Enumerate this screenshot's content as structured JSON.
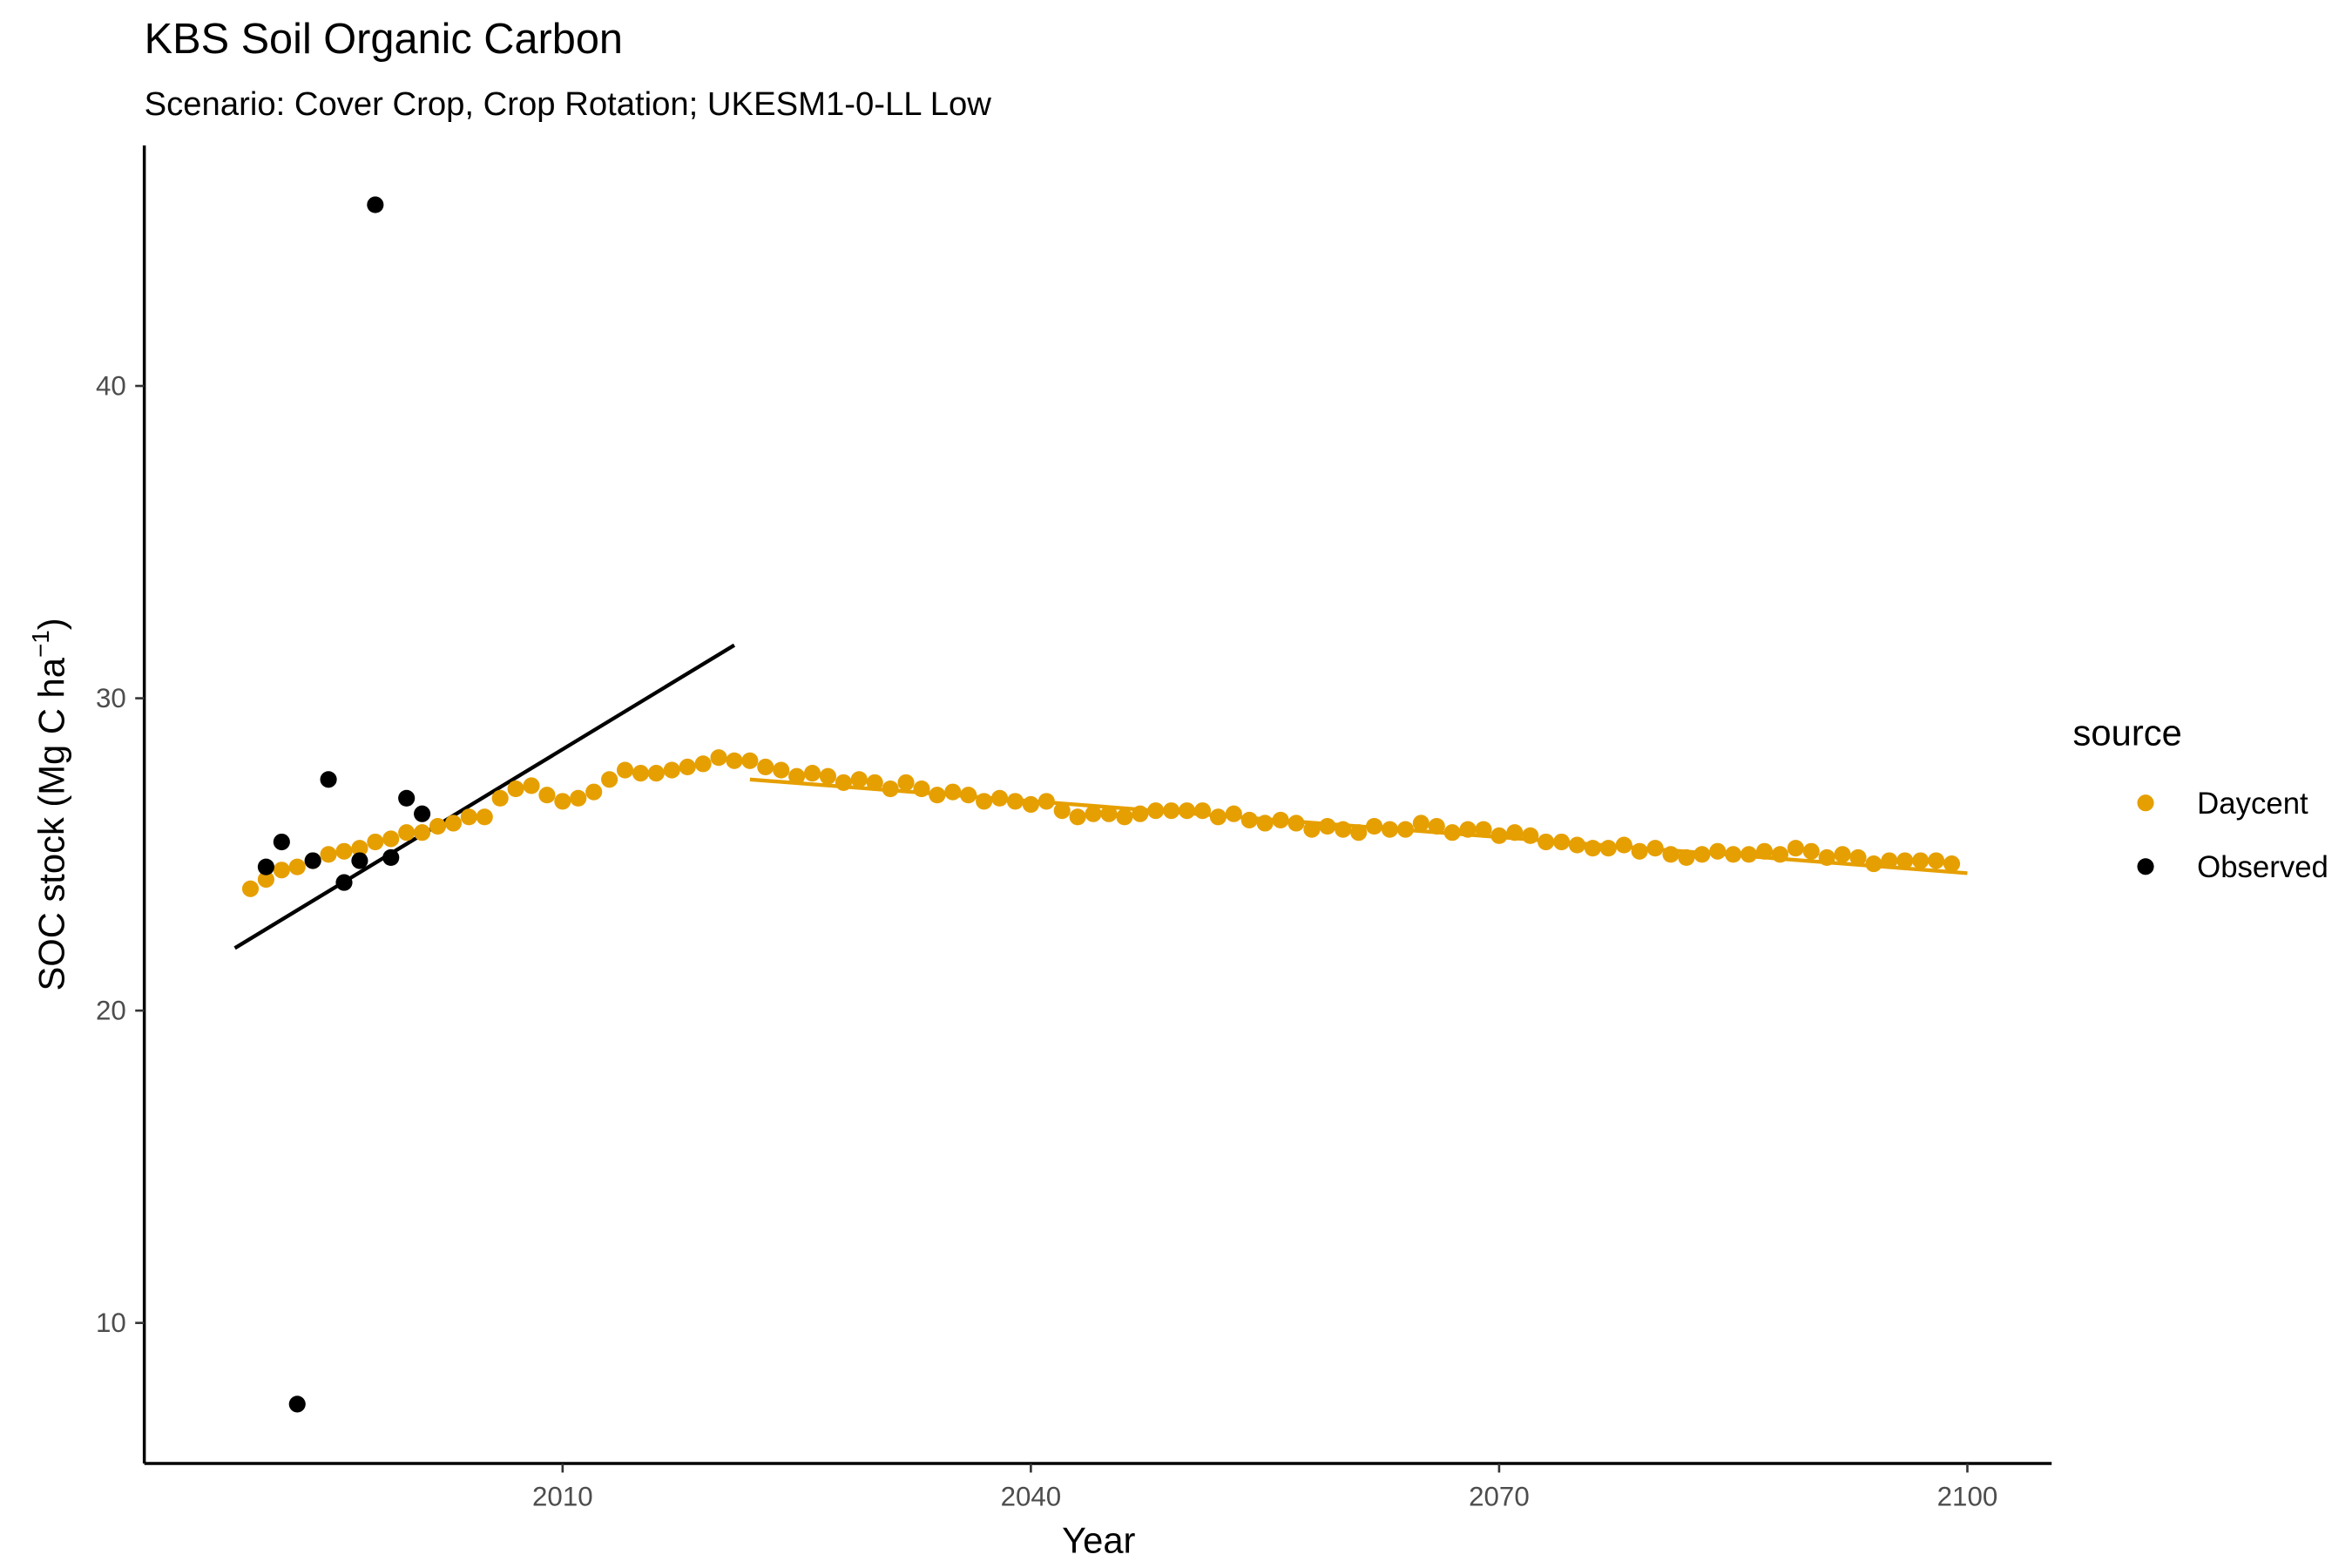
{
  "chart_data": {
    "type": "scatter",
    "title": "KBS Soil Organic Carbon",
    "subtitle": "Scenario: Cover Crop, Crop Rotation; UKESM1-0-LL Low",
    "x_label": "Year",
    "y_label": {
      "text": "SOC stock (Mg C ha",
      "sup": "−1",
      "end": ")"
    },
    "legend_title": "source",
    "legend": "right",
    "grid": false,
    "xlim": [
      1983.2,
      2105.4
    ],
    "ylim": [
      5.5,
      47.7
    ],
    "xticks": [
      2010,
      2040,
      2070,
      2100
    ],
    "yticks": [
      10,
      20,
      30,
      40
    ],
    "series": [
      {
        "name": "Daycent",
        "color": "#E69F00",
        "x": [
          1990,
          1991,
          1992,
          1993,
          1994,
          1995,
          1996,
          1997,
          1998,
          1999,
          2000,
          2001,
          2002,
          2003,
          2004,
          2005,
          2006,
          2007,
          2008,
          2009,
          2010,
          2011,
          2012,
          2013,
          2014,
          2015,
          2016,
          2017,
          2018,
          2019,
          2020,
          2021,
          2022,
          2023,
          2024,
          2025,
          2026,
          2027,
          2028,
          2029,
          2030,
          2031,
          2032,
          2033,
          2034,
          2035,
          2036,
          2037,
          2038,
          2039,
          2040,
          2041,
          2042,
          2043,
          2044,
          2045,
          2046,
          2047,
          2048,
          2049,
          2050,
          2051,
          2052,
          2053,
          2054,
          2055,
          2056,
          2057,
          2058,
          2059,
          2060,
          2061,
          2062,
          2063,
          2064,
          2065,
          2066,
          2067,
          2068,
          2069,
          2070,
          2071,
          2072,
          2073,
          2074,
          2075,
          2076,
          2077,
          2078,
          2079,
          2080,
          2081,
          2082,
          2083,
          2084,
          2085,
          2086,
          2087,
          2088,
          2089,
          2090,
          2091,
          2092,
          2093,
          2094,
          2095,
          2096,
          2097,
          2098,
          2099
        ],
        "values": [
          23.9,
          24.2,
          24.5,
          24.6,
          24.8,
          25.0,
          25.1,
          25.2,
          25.4,
          25.5,
          25.7,
          25.7,
          25.9,
          26.0,
          26.2,
          26.2,
          26.8,
          27.1,
          27.2,
          26.9,
          26.7,
          26.8,
          27.0,
          27.4,
          27.7,
          27.6,
          27.6,
          27.7,
          27.8,
          27.9,
          28.1,
          28.0,
          28.0,
          27.8,
          27.7,
          27.5,
          27.6,
          27.5,
          27.3,
          27.4,
          27.3,
          27.1,
          27.3,
          27.1,
          26.9,
          27.0,
          26.9,
          26.7,
          26.8,
          26.7,
          26.6,
          26.7,
          26.4,
          26.2,
          26.3,
          26.3,
          26.2,
          26.3,
          26.4,
          26.4,
          26.4,
          26.4,
          26.2,
          26.3,
          26.1,
          26.0,
          26.1,
          26.0,
          25.8,
          25.9,
          25.8,
          25.7,
          25.9,
          25.8,
          25.8,
          26.0,
          25.9,
          25.7,
          25.8,
          25.8,
          25.6,
          25.7,
          25.6,
          25.4,
          25.4,
          25.3,
          25.2,
          25.2,
          25.3,
          25.1,
          25.2,
          25.0,
          24.9,
          25.0,
          25.1,
          25.0,
          25.0,
          25.1,
          25.0,
          25.2,
          25.1,
          24.9,
          25.0,
          24.9,
          24.7,
          24.8,
          24.8,
          24.8,
          24.8,
          24.7
        ]
      },
      {
        "name": "Observed",
        "color": "#000000",
        "x": [
          1991,
          1992,
          1993,
          1994,
          1995,
          1996,
          1997,
          1998,
          1999,
          2000,
          2001
        ],
        "values": [
          24.6,
          25.4,
          7.4,
          24.8,
          27.4,
          24.1,
          24.8,
          45.8,
          24.9,
          26.8,
          26.3
        ]
      }
    ],
    "trend_lines": [
      {
        "color": "#000000",
        "x": [
          1989,
          2021
        ],
        "values": [
          22.0,
          31.7
        ]
      },
      {
        "color": "#E69F00",
        "x": [
          2022,
          2100
        ],
        "values": [
          27.4,
          24.4
        ]
      }
    ]
  }
}
